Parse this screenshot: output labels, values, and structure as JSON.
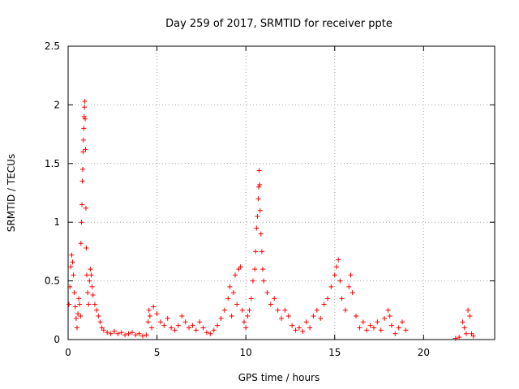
{
  "chart_data": {
    "type": "scatter",
    "title": "Day 259 of 2017, SRMTID for receiver ppte",
    "xlabel": "GPS time / hours",
    "ylabel": "SRMTID / TECUs",
    "xlim": [
      0,
      24
    ],
    "ylim": [
      0,
      2.5
    ],
    "xticks": [
      0,
      5,
      10,
      15,
      20
    ],
    "xtick_labels": [
      "0",
      "5",
      "10",
      "15",
      "20"
    ],
    "yticks": [
      0,
      0.5,
      1,
      1.5,
      2,
      2.5
    ],
    "ytick_labels": [
      "0",
      "0.5",
      "1",
      "1.5",
      "2",
      "2.5"
    ],
    "grid": true,
    "marker": "+",
    "color": "#ff0000",
    "series": [
      {
        "name": "SRMTID",
        "points": [
          [
            0.05,
            0.3
          ],
          [
            0.1,
            0.45
          ],
          [
            0.15,
            0.62
          ],
          [
            0.2,
            0.72
          ],
          [
            0.25,
            0.66
          ],
          [
            0.3,
            0.55
          ],
          [
            0.35,
            0.4
          ],
          [
            0.4,
            0.28
          ],
          [
            0.45,
            0.18
          ],
          [
            0.5,
            0.1
          ],
          [
            0.55,
            0.22
          ],
          [
            0.6,
            0.35
          ],
          [
            0.65,
            0.3
          ],
          [
            0.7,
            0.2
          ],
          [
            0.72,
            0.82
          ],
          [
            0.75,
            1.0
          ],
          [
            0.78,
            1.15
          ],
          [
            0.8,
            1.35
          ],
          [
            0.82,
            1.45
          ],
          [
            0.84,
            1.6
          ],
          [
            0.86,
            1.7
          ],
          [
            0.88,
            1.8
          ],
          [
            0.9,
            1.9
          ],
          [
            0.92,
            1.98
          ],
          [
            0.94,
            2.03
          ],
          [
            0.96,
            1.88
          ],
          [
            0.98,
            1.62
          ],
          [
            1.0,
            1.12
          ],
          [
            1.02,
            0.78
          ],
          [
            1.05,
            0.55
          ],
          [
            1.1,
            0.4
          ],
          [
            1.15,
            0.3
          ],
          [
            1.2,
            0.5
          ],
          [
            1.25,
            0.6
          ],
          [
            1.3,
            0.55
          ],
          [
            1.35,
            0.45
          ],
          [
            1.4,
            0.38
          ],
          [
            1.5,
            0.3
          ],
          [
            1.6,
            0.25
          ],
          [
            1.7,
            0.2
          ],
          [
            1.8,
            0.15
          ],
          [
            1.9,
            0.1
          ],
          [
            2.0,
            0.08
          ],
          [
            2.2,
            0.06
          ],
          [
            2.4,
            0.05
          ],
          [
            2.6,
            0.07
          ],
          [
            2.8,
            0.05
          ],
          [
            3.0,
            0.06
          ],
          [
            3.2,
            0.04
          ],
          [
            3.4,
            0.05
          ],
          [
            3.6,
            0.06
          ],
          [
            3.8,
            0.04
          ],
          [
            4.0,
            0.05
          ],
          [
            4.2,
            0.03
          ],
          [
            4.4,
            0.04
          ],
          [
            4.5,
            0.15
          ],
          [
            4.55,
            0.25
          ],
          [
            4.6,
            0.2
          ],
          [
            4.7,
            0.1
          ],
          [
            4.8,
            0.28
          ],
          [
            5.0,
            0.22
          ],
          [
            5.2,
            0.15
          ],
          [
            5.4,
            0.12
          ],
          [
            5.6,
            0.18
          ],
          [
            5.8,
            0.1
          ],
          [
            6.0,
            0.08
          ],
          [
            6.2,
            0.12
          ],
          [
            6.4,
            0.2
          ],
          [
            6.6,
            0.15
          ],
          [
            6.8,
            0.1
          ],
          [
            7.0,
            0.12
          ],
          [
            7.2,
            0.08
          ],
          [
            7.4,
            0.15
          ],
          [
            7.6,
            0.1
          ],
          [
            7.8,
            0.06
          ],
          [
            8.0,
            0.05
          ],
          [
            8.2,
            0.08
          ],
          [
            8.4,
            0.12
          ],
          [
            8.6,
            0.18
          ],
          [
            8.8,
            0.25
          ],
          [
            9.0,
            0.35
          ],
          [
            9.1,
            0.45
          ],
          [
            9.2,
            0.2
          ],
          [
            9.3,
            0.4
          ],
          [
            9.4,
            0.55
          ],
          [
            9.5,
            0.3
          ],
          [
            9.6,
            0.6
          ],
          [
            9.7,
            0.62
          ],
          [
            9.8,
            0.25
          ],
          [
            9.9,
            0.15
          ],
          [
            10.0,
            0.1
          ],
          [
            10.1,
            0.2
          ],
          [
            10.2,
            0.25
          ],
          [
            10.3,
            0.35
          ],
          [
            10.4,
            0.5
          ],
          [
            10.5,
            0.6
          ],
          [
            10.55,
            0.75
          ],
          [
            10.6,
            0.95
          ],
          [
            10.65,
            1.05
          ],
          [
            10.7,
            1.2
          ],
          [
            10.72,
            1.3
          ],
          [
            10.75,
            1.44
          ],
          [
            10.78,
            1.32
          ],
          [
            10.8,
            1.1
          ],
          [
            10.85,
            0.9
          ],
          [
            10.9,
            0.75
          ],
          [
            10.95,
            0.6
          ],
          [
            11.0,
            0.5
          ],
          [
            11.2,
            0.4
          ],
          [
            11.4,
            0.3
          ],
          [
            11.6,
            0.35
          ],
          [
            11.8,
            0.25
          ],
          [
            12.0,
            0.18
          ],
          [
            12.2,
            0.25
          ],
          [
            12.4,
            0.2
          ],
          [
            12.6,
            0.12
          ],
          [
            12.8,
            0.08
          ],
          [
            13.0,
            0.1
          ],
          [
            13.2,
            0.07
          ],
          [
            13.4,
            0.15
          ],
          [
            13.6,
            0.1
          ],
          [
            13.8,
            0.2
          ],
          [
            14.0,
            0.25
          ],
          [
            14.2,
            0.18
          ],
          [
            14.4,
            0.3
          ],
          [
            14.6,
            0.35
          ],
          [
            14.8,
            0.45
          ],
          [
            15.0,
            0.55
          ],
          [
            15.1,
            0.62
          ],
          [
            15.2,
            0.68
          ],
          [
            15.3,
            0.5
          ],
          [
            15.4,
            0.35
          ],
          [
            15.6,
            0.25
          ],
          [
            15.8,
            0.45
          ],
          [
            15.9,
            0.55
          ],
          [
            16.0,
            0.4
          ],
          [
            16.2,
            0.2
          ],
          [
            16.4,
            0.1
          ],
          [
            16.6,
            0.15
          ],
          [
            16.8,
            0.08
          ],
          [
            17.0,
            0.12
          ],
          [
            17.2,
            0.1
          ],
          [
            17.4,
            0.15
          ],
          [
            17.6,
            0.08
          ],
          [
            17.8,
            0.18
          ],
          [
            18.0,
            0.25
          ],
          [
            18.1,
            0.2
          ],
          [
            18.2,
            0.12
          ],
          [
            18.4,
            0.05
          ],
          [
            18.6,
            0.1
          ],
          [
            18.8,
            0.15
          ],
          [
            19.0,
            0.08
          ],
          [
            21.8,
            0.01
          ],
          [
            22.0,
            0.02
          ],
          [
            22.2,
            0.15
          ],
          [
            22.3,
            0.1
          ],
          [
            22.4,
            0.05
          ],
          [
            22.5,
            0.25
          ],
          [
            22.6,
            0.2
          ],
          [
            22.7,
            0.05
          ],
          [
            22.8,
            0.03
          ]
        ]
      }
    ]
  }
}
